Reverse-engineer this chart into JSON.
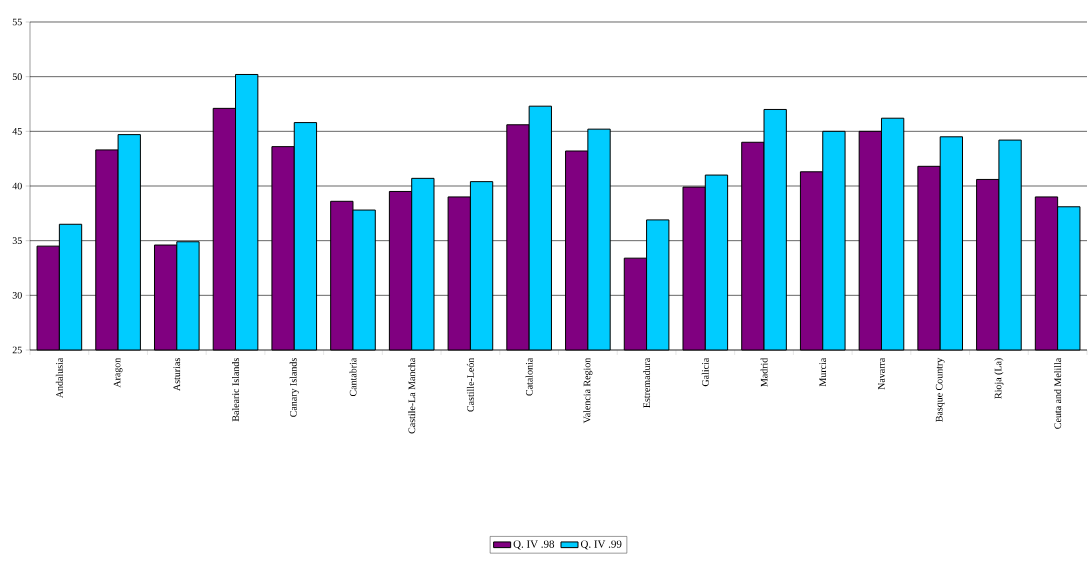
{
  "chart_data": {
    "type": "bar",
    "categories": [
      "Andalusia",
      "Aragon",
      "Asturias",
      "Balearic Islands",
      "Canary Islands",
      "Cantabria",
      "Castile-La Mancha",
      "Castille-León",
      "Catalonia",
      "Valencia Region",
      "Estremadura",
      "Galicia",
      "Madrid",
      "Murcia",
      "Navarra",
      "Basque Country",
      "Rioja (La)",
      "Ceuta and Melilla"
    ],
    "series": [
      {
        "name": "Q. IV .98",
        "color": "#800080",
        "values": [
          34.5,
          43.3,
          34.6,
          47.1,
          43.6,
          38.6,
          39.5,
          39.0,
          45.6,
          43.2,
          33.4,
          39.9,
          44.0,
          41.3,
          45.0,
          41.8,
          40.6,
          39.0
        ]
      },
      {
        "name": "Q. IV .99",
        "color": "#00ccff",
        "values": [
          36.5,
          44.7,
          34.9,
          50.2,
          45.8,
          37.8,
          40.7,
          40.4,
          47.3,
          45.2,
          36.9,
          41.0,
          47.0,
          45.0,
          46.2,
          44.5,
          44.2,
          38.1
        ]
      }
    ],
    "ylim": [
      25,
      55
    ],
    "yticks": [
      25,
      30,
      35,
      40,
      45,
      50,
      55
    ],
    "grid": "y",
    "legend": "bottom"
  }
}
